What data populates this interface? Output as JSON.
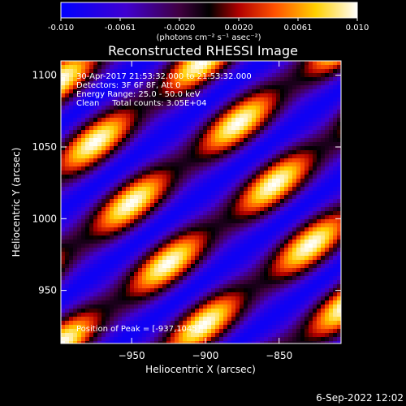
{
  "colorbar": {
    "ticks": [
      "-0.010",
      "-0.0061",
      "-0.0020",
      "0.0020",
      "0.0061",
      "0.010"
    ],
    "unit_label": "(photons cm⁻² s⁻¹ asec⁻²)"
  },
  "annotations": {
    "time_range": "30-Apr-2017 21:53:32.000 to 21:53:32.000",
    "detectors": "Detectors: 3F 6F 8F, Att 0",
    "energy": "Energy Range: 25.0 - 50.0 keV",
    "clean": "Clean     Total counts: 3.05E+04",
    "peak": "Position of Peak = [-937,1045]"
  },
  "footer_date": "6-Sep-2022 12:02",
  "chart_data": {
    "type": "heatmap",
    "title": "Reconstructed RHESSI Image",
    "xlabel": "Heliocentric X (arcsec)",
    "ylabel": "Heliocentric Y (arcsec)",
    "xlim": [
      -998,
      -808
    ],
    "ylim": [
      913,
      1110
    ],
    "xticks": [
      -950,
      -900,
      -850
    ],
    "yticks": [
      950,
      1000,
      1050,
      1100
    ],
    "xtick_labels": [
      "−950",
      "−900",
      "−850"
    ],
    "ytick_labels": [
      "950",
      "1000",
      "1050",
      "1100"
    ],
    "colorscale_range": [
      -0.01,
      0.01
    ],
    "colormap": [
      "#0000ff",
      "#5a00c8",
      "#000000",
      "#c80000",
      "#ff7800",
      "#ffff00",
      "#ffffff"
    ],
    "peak_position": [
      -937,
      1045
    ]
  }
}
